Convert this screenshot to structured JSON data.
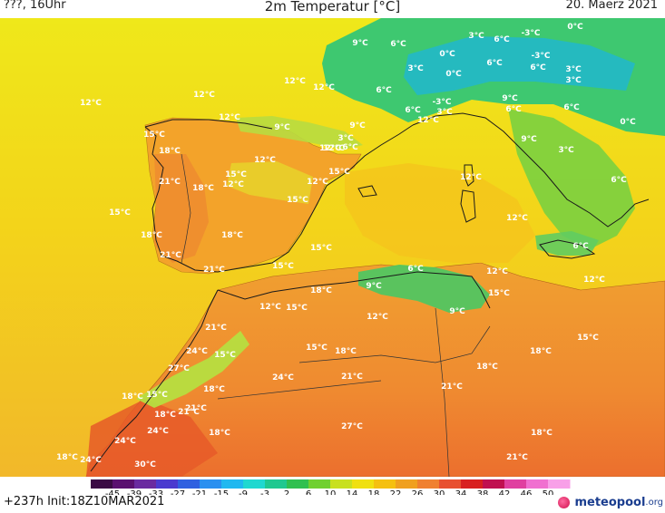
{
  "header": {
    "left": "???, 16Uhr",
    "title": "2m Temperatur [°C]",
    "date": "20. Maerz 2021"
  },
  "map": {
    "region": "Western Mediterranean",
    "temp_labels": [
      {
        "text": "12°C"
      },
      {
        "text": "12°C"
      },
      {
        "text": "12°C"
      },
      {
        "text": "12°C"
      },
      {
        "text": "12°C"
      },
      {
        "text": "15°C"
      },
      {
        "text": "18°C"
      },
      {
        "text": "12°C"
      },
      {
        "text": "9°C"
      },
      {
        "text": "3°C"
      },
      {
        "text": "6°C"
      },
      {
        "text": "12°C"
      },
      {
        "text": "12°C"
      },
      {
        "text": "15°C"
      },
      {
        "text": "21°C"
      },
      {
        "text": "18°C"
      },
      {
        "text": "15°C"
      },
      {
        "text": "12°C"
      },
      {
        "text": "12°C"
      },
      {
        "text": "15°C"
      },
      {
        "text": "15°C"
      },
      {
        "text": "18°C"
      },
      {
        "text": "18°C"
      },
      {
        "text": "15°C"
      },
      {
        "text": "21°C"
      },
      {
        "text": "15°C"
      },
      {
        "text": "21°C"
      },
      {
        "text": "9°C"
      },
      {
        "text": "6°C"
      },
      {
        "text": "3°C"
      },
      {
        "text": "6°C"
      },
      {
        "text": "-3°C"
      },
      {
        "text": "0°C"
      },
      {
        "text": "0°C"
      },
      {
        "text": "6°C"
      },
      {
        "text": "-3°C"
      },
      {
        "text": "3°C"
      },
      {
        "text": "0°C"
      },
      {
        "text": "3°C"
      },
      {
        "text": "3°C"
      },
      {
        "text": "6°C"
      },
      {
        "text": "6°C"
      },
      {
        "text": "-3°C"
      },
      {
        "text": "6°C"
      },
      {
        "text": "3°C"
      },
      {
        "text": "12°C"
      },
      {
        "text": "9°C"
      },
      {
        "text": "6°C"
      },
      {
        "text": "9°C"
      },
      {
        "text": "0°C"
      },
      {
        "text": "6°C"
      },
      {
        "text": "3°C"
      },
      {
        "text": "12°C"
      },
      {
        "text": "6°C"
      },
      {
        "text": "12°C"
      },
      {
        "text": "9°C"
      },
      {
        "text": "6°C"
      },
      {
        "text": "12°C"
      },
      {
        "text": "12°C"
      },
      {
        "text": "6°C"
      },
      {
        "text": "9°C"
      },
      {
        "text": "15°C"
      },
      {
        "text": "12°C"
      },
      {
        "text": "18°C"
      },
      {
        "text": "15°C"
      },
      {
        "text": "12°C"
      },
      {
        "text": "9°C"
      },
      {
        "text": "21°C"
      },
      {
        "text": "24°C"
      },
      {
        "text": "15°C"
      },
      {
        "text": "27°C"
      },
      {
        "text": "15°C"
      },
      {
        "text": "18°C"
      },
      {
        "text": "18°C"
      },
      {
        "text": "21°C"
      },
      {
        "text": "18°C"
      },
      {
        "text": "24°C"
      },
      {
        "text": "21°C"
      },
      {
        "text": "15°C"
      },
      {
        "text": "18°C"
      },
      {
        "text": "21°C"
      },
      {
        "text": "18°C"
      },
      {
        "text": "18°C"
      },
      {
        "text": "15°C"
      },
      {
        "text": "18°C"
      },
      {
        "text": "24°C"
      },
      {
        "text": "24°C"
      },
      {
        "text": "27°C"
      },
      {
        "text": "24°C"
      },
      {
        "text": "18°C"
      },
      {
        "text": "21°C"
      },
      {
        "text": "30°C"
      },
      {
        "text": "18°C"
      },
      {
        "text": "21°C"
      }
    ]
  },
  "colorbar": {
    "ticks": [
      "-45",
      "-39",
      "-33",
      "-27",
      "-21",
      "-15",
      "-9",
      "-3",
      "2",
      "6",
      "10",
      "14",
      "18",
      "22",
      "26",
      "30",
      "34",
      "38",
      "42",
      "46",
      "50"
    ],
    "colors": [
      "#3a0a44",
      "#5a1070",
      "#6a2aa0",
      "#4a3acf",
      "#3060e0",
      "#2a90f0",
      "#20b8f0",
      "#20d8d0",
      "#20c890",
      "#30c050",
      "#70d030",
      "#c8e020",
      "#f0e010",
      "#f5c010",
      "#f0a020",
      "#f08030",
      "#e85030",
      "#d82020",
      "#c01050",
      "#e040a0",
      "#f070d0",
      "#f8a0e8"
    ]
  },
  "footer": {
    "run_info": "+237h  Init:18Z10MAR2021",
    "brand_name": "meteopool",
    "brand_tld": ".org"
  }
}
